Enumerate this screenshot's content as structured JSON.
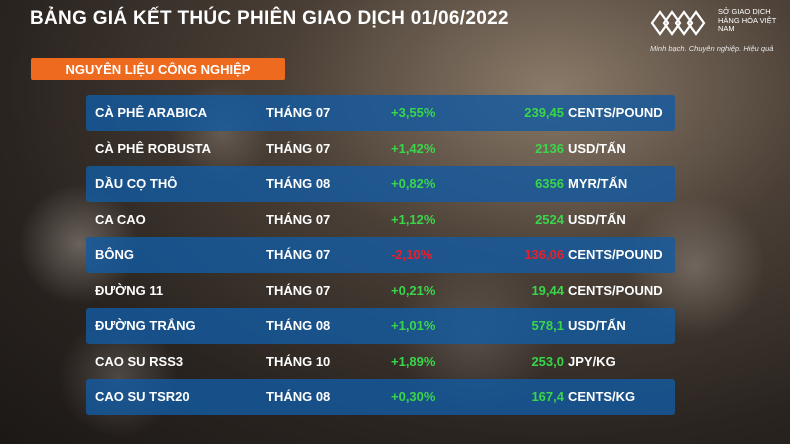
{
  "header": {
    "title": "BẢNG GIÁ KẾT THÚC PHIÊN GIAO DỊCH 01/06/2022",
    "logo_name": "SỞ GIAO DỊCH HÀNG HÓA VIỆT NAM",
    "logo_tagline": "Minh bạch. Chuyên nghiệp. Hiệu quả"
  },
  "section": {
    "label": "NGUYÊN LIỆU CÔNG NGHIỆP"
  },
  "colors": {
    "accent_orange": "#ee6a1f",
    "row_blue": "#1e5fa8",
    "up_green": "#3ad64a",
    "down_red": "#e8202a"
  },
  "rows": [
    {
      "name": "CÀ PHÊ ARABICA",
      "month": "THÁNG 07",
      "change": "+3,55%",
      "price": "239,45",
      "unit": "CENTS/POUND",
      "direction": "up"
    },
    {
      "name": "CÀ PHÊ ROBUSTA",
      "month": "THÁNG 07",
      "change": "+1,42%",
      "price": "2136",
      "unit": "USD/TẤN",
      "direction": "up"
    },
    {
      "name": "DẦU CỌ THÔ",
      "month": "THÁNG 08",
      "change": "+0,82%",
      "price": "6356",
      "unit": "MYR/TẤN",
      "direction": "up"
    },
    {
      "name": "CA CAO",
      "month": "THÁNG 07",
      "change": "+1,12%",
      "price": "2524",
      "unit": "USD/TẤN",
      "direction": "up"
    },
    {
      "name": "BÔNG",
      "month": "THÁNG 07",
      "change": "-2,10%",
      "price": "136,06",
      "unit": "CENTS/POUND",
      "direction": "down"
    },
    {
      "name": "ĐƯỜNG 11",
      "month": "THÁNG 07",
      "change": "+0,21%",
      "price": "19,44",
      "unit": "CENTS/POUND",
      "direction": "up"
    },
    {
      "name": "ĐƯỜNG TRẮNG",
      "month": "THÁNG 08",
      "change": "+1,01%",
      "price": "578,1",
      "unit": "USD/TẤN",
      "direction": "up"
    },
    {
      "name": "CAO SU RSS3",
      "month": "THÁNG 10",
      "change": "+1,89%",
      "price": "253,0",
      "unit": "JPY/KG",
      "direction": "up"
    },
    {
      "name": "CAO SU TSR20",
      "month": "THÁNG 08",
      "change": "+0,30%",
      "price": "167,4",
      "unit": "CENTS/KG",
      "direction": "up"
    }
  ]
}
